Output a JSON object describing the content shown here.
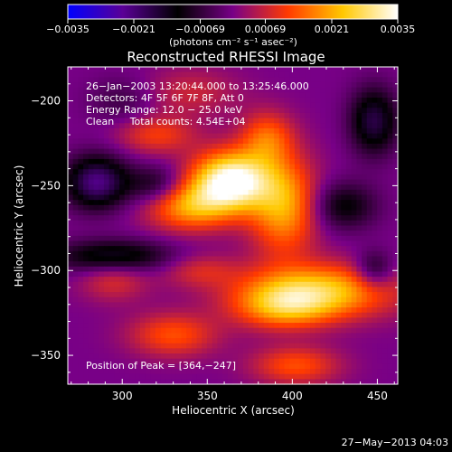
{
  "chart_data": {
    "type": "heatmap",
    "title": "Reconstructed RHESSI Image",
    "xlabel": "Heliocentric X (arcsec)",
    "ylabel": "Heliocentric Y (arcsec)",
    "xlim": [
      268,
      462
    ],
    "ylim": [
      -367,
      -180
    ],
    "xticks": [
      300,
      350,
      400,
      450
    ],
    "xtick_labels": [
      "300",
      "350",
      "400",
      "450"
    ],
    "yticks": [
      -200,
      -250,
      -300,
      -350
    ],
    "ytick_labels": [
      "−200",
      "−250",
      "−300",
      "−350"
    ],
    "grid": false,
    "colorbar": {
      "min": -0.0035,
      "max": 0.0035,
      "tick_values": [
        -0.0035,
        -0.0021,
        -0.00069,
        0.00069,
        0.0021,
        0.0035
      ],
      "tick_labels": [
        "−0.0035",
        "−0.0021",
        "−0.00069",
        "0.00069",
        "0.0021",
        "0.0035"
      ],
      "unit_label": "(photons cm⁻² s⁻¹ asec⁻²)",
      "colors": [
        "#0000ff",
        "#5a0096",
        "#000000",
        "#780087",
        "#ff3a00",
        "#ffc800",
        "#ffffff"
      ]
    },
    "annotations": {
      "line1": "26−Jan−2003 13:20:44.000 to 13:25:46.000",
      "line2": "Detectors: 4F 5F 6F 7F 8F, Att 0",
      "line3": "Energy Range: 12.0 − 25.0 keV",
      "line4": "Clean     Total counts: 4.54E+04",
      "peak": "Position of Peak = [364,−247]"
    },
    "peak": {
      "x": 364,
      "y": -247
    },
    "components": [
      {
        "x": 364,
        "y": -247,
        "sx": 16,
        "sy": 12,
        "amp": 0.0036
      },
      {
        "x": 340,
        "y": -262,
        "sx": 18,
        "sy": 10,
        "amp": 0.002
      },
      {
        "x": 395,
        "y": -262,
        "sx": 14,
        "sy": 20,
        "amp": 0.0021
      },
      {
        "x": 385,
        "y": -222,
        "sx": 11,
        "sy": 11,
        "amp": 0.0014
      },
      {
        "x": 415,
        "y": -312,
        "sx": 32,
        "sy": 11,
        "amp": 0.0024
      },
      {
        "x": 395,
        "y": -322,
        "sx": 20,
        "sy": 9,
        "amp": 0.0016
      },
      {
        "x": 330,
        "y": -338,
        "sx": 18,
        "sy": 9,
        "amp": 0.0013
      },
      {
        "x": 402,
        "y": -356,
        "sx": 18,
        "sy": 8,
        "amp": 0.0013
      },
      {
        "x": 320,
        "y": -220,
        "sx": 16,
        "sy": 8,
        "amp": 0.0011
      },
      {
        "x": 345,
        "y": -300,
        "sx": 16,
        "sy": 7,
        "amp": 0.0008
      },
      {
        "x": 295,
        "y": -305,
        "sx": 14,
        "sy": 9,
        "amp": 0.0009
      },
      {
        "x": 340,
        "y": -195,
        "sx": 20,
        "sy": 10,
        "amp": 0.0007
      },
      {
        "x": 285,
        "y": -248,
        "sx": 13,
        "sy": 11,
        "amp": -0.0022
      },
      {
        "x": 295,
        "y": -292,
        "sx": 24,
        "sy": 7,
        "amp": -0.0016
      },
      {
        "x": 320,
        "y": -250,
        "sx": 12,
        "sy": 8,
        "amp": -0.0011
      },
      {
        "x": 448,
        "y": -212,
        "sx": 10,
        "sy": 14,
        "amp": -0.0017
      },
      {
        "x": 430,
        "y": -262,
        "sx": 14,
        "sy": 10,
        "amp": -0.0012
      },
      {
        "x": 448,
        "y": -300,
        "sx": 8,
        "sy": 8,
        "amp": -0.0012
      },
      {
        "x": 300,
        "y": -200,
        "sx": 14,
        "sy": 10,
        "amp": -0.0006
      }
    ]
  },
  "footer": {
    "timestamp": "27−May−2013 04:03"
  }
}
